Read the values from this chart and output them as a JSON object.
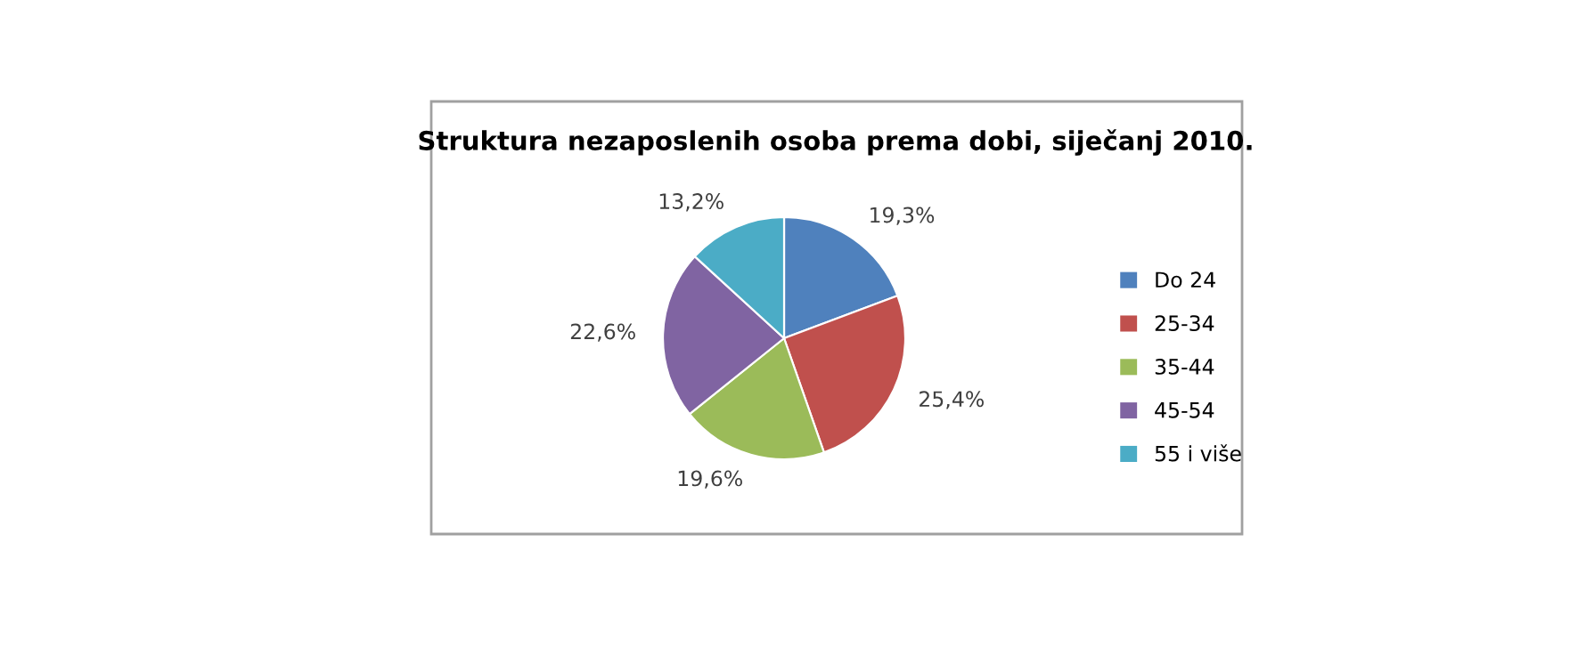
{
  "chart_data": {
    "type": "pie",
    "title": "Struktura nezaposlenih osoba prema dobi, siječanj 2010.",
    "categories": [
      "Do 24",
      "25-34",
      "35-44",
      "45-54",
      "55 i više"
    ],
    "values": [
      19.3,
      25.4,
      19.6,
      22.6,
      13.2
    ],
    "value_labels": [
      "19,3%",
      "25,4%",
      "19,6%",
      "22,6%",
      "13,2%"
    ],
    "colors": [
      "#4f81bd",
      "#c0504d",
      "#9bbb59",
      "#8064a2",
      "#4bacc6"
    ],
    "legend": "right"
  }
}
